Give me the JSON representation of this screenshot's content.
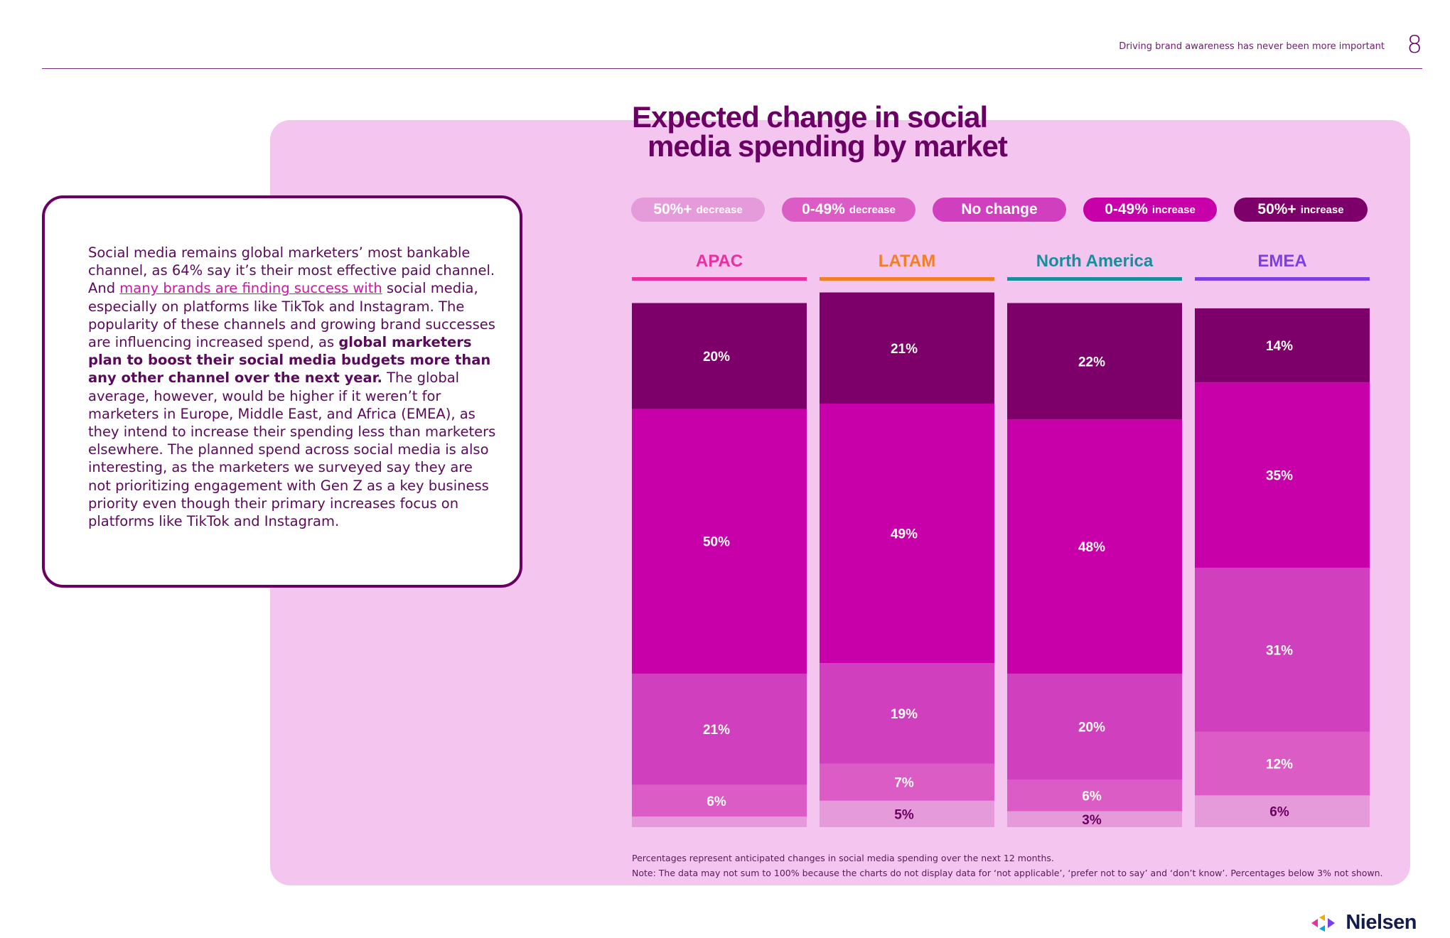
{
  "header": {
    "title": "Driving brand awareness has never been more important",
    "page_number": "8"
  },
  "body": {
    "p1": "Social media remains global marketers’ most bankable channel, as 64% say it’s their most effective paid channel. And ",
    "link": "many brands are finding success with",
    "p2": " social media, especially on platforms like TikTok and Instagram. The popularity of these channels and growing brand successes are influencing increased spend, as ",
    "bold": "global marketers plan to boost their social media budgets more than any other channel over the next year.",
    "p3": " The global average, however, would be higher if it weren’t for marketers in Europe, Middle East, and Africa (EMEA), as they intend to increase their spending less than marketers elsewhere. The planned spend across social media is also interesting, as the marketers we surveyed say they are not prioritizing engagement with Gen Z as a key business priority even though their primary increases focus on platforms like TikTok and Instagram."
  },
  "legend": [
    {
      "main": "50%+",
      "sub": "decrease",
      "color": "#e59ad9"
    },
    {
      "main": "0-49%",
      "sub": "decrease",
      "color": "#da5cc4"
    },
    {
      "main": "No change",
      "sub": "",
      "color": "#d03fbd"
    },
    {
      "main": "0-49%",
      "sub": "increase",
      "color": "#c800aa"
    },
    {
      "main": "50%+",
      "sub": "increase",
      "color": "#7d006a"
    }
  ],
  "chart_data": {
    "type": "bar",
    "stacked": true,
    "title": "Expected change in social media spending by market",
    "categories": [
      "APAC",
      "LATAM",
      "North America",
      "EMEA"
    ],
    "category_colors": [
      "#e8309e",
      "#f07f25",
      "#168f9d",
      "#7c3fe4"
    ],
    "series": [
      {
        "name": "50%+ decrease",
        "color": "#e59ad9",
        "values": [
          2,
          5,
          3,
          6
        ],
        "labels": [
          "",
          "5%",
          "3%",
          "6%"
        ]
      },
      {
        "name": "0-49% decrease",
        "color": "#da5cc4",
        "values": [
          6,
          7,
          6,
          12
        ],
        "labels": [
          "6%",
          "7%",
          "6%",
          "12%"
        ]
      },
      {
        "name": "No change",
        "color": "#d03fbd",
        "values": [
          21,
          19,
          20,
          31
        ],
        "labels": [
          "21%",
          "19%",
          "20%",
          "31%"
        ]
      },
      {
        "name": "0-49% increase",
        "color": "#c800aa",
        "values": [
          50,
          49,
          48,
          35
        ],
        "labels": [
          "50%",
          "49%",
          "48%",
          "35%"
        ]
      },
      {
        "name": "50%+ increase",
        "color": "#7d006a",
        "values": [
          20,
          21,
          22,
          14
        ],
        "labels": [
          "20%",
          "21%",
          "22%",
          "14%"
        ]
      }
    ]
  },
  "footnotes": [
    "Percentages represent anticipated changes in social media spending over the next 12 months.",
    "Note: The data may not sum to 100% because the charts do not display data for ‘not applicable’, ‘prefer not to say’ and ‘don’t know’. Percentages below 3% not shown."
  ],
  "logo": {
    "text": "Nielsen"
  }
}
